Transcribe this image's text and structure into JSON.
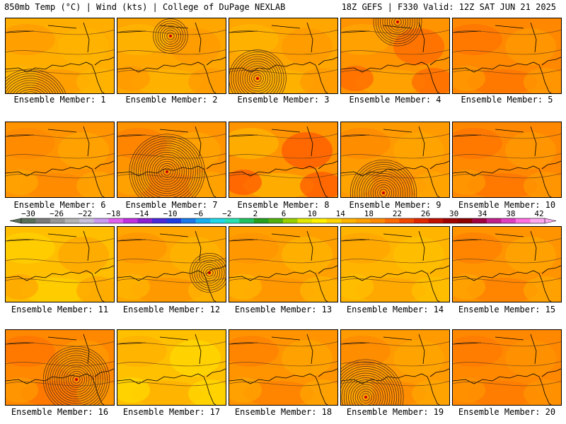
{
  "header": {
    "left": "850mb Temp (°C) | Wind (kts) | College of DuPage NEXLAB",
    "right": "18Z GEFS | F330 Valid: 12Z SAT JUN 21 2025"
  },
  "colorbar": {
    "labels": [
      "−30",
      "−26",
      "−22",
      "−18",
      "−14",
      "−10",
      "−6",
      "−2",
      "2",
      "6",
      "10",
      "14",
      "18",
      "22",
      "26",
      "30",
      "34",
      "38",
      "42"
    ],
    "colors": [
      "#5a6f5a",
      "#7a7a7a",
      "#979797",
      "#b4b4b4",
      "#c8c0dc",
      "#c99bf0",
      "#e060f0",
      "#c030e0",
      "#8a20d0",
      "#4a2ad8",
      "#1f3ee0",
      "#1a78e8",
      "#19b0f0",
      "#20d8e8",
      "#29e0b0",
      "#20c060",
      "#26a020",
      "#50b010",
      "#98d000",
      "#e0e800",
      "#fff000",
      "#ffd400",
      "#ffb400",
      "#ffa000",
      "#ff8a00",
      "#ff6a00",
      "#f04800",
      "#e02800",
      "#c01000",
      "#a00000",
      "#8c0000",
      "#a00040",
      "#c0208a",
      "#e040c0",
      "#ff70e0",
      "#ffa8f0"
    ]
  },
  "members": [
    {
      "label": "Ensemble Member: 1",
      "colors": [
        "#ffae00",
        "#ff9a00",
        "#ffb400"
      ],
      "low": [
        35,
        125,
        16
      ]
    },
    {
      "label": "Ensemble Member: 2",
      "colors": [
        "#ffa600",
        "#ffb400",
        "#ff9a00"
      ],
      "low": [
        75,
        25,
        7
      ]
    },
    {
      "label": "Ensemble Member: 3",
      "colors": [
        "#ffa600",
        "#ffb400",
        "#ff9a00"
      ],
      "low": [
        40,
        85,
        12
      ]
    },
    {
      "label": "Ensemble Member: 4",
      "colors": [
        "#ff9400",
        "#ffa600",
        "#ff6a00"
      ],
      "low": [
        80,
        5,
        10
      ]
    },
    {
      "label": "Ensemble Member: 5",
      "colors": [
        "#ff8800",
        "#ff7400",
        "#ff9a00"
      ],
      "low": null
    },
    {
      "label": "Ensemble Member: 6",
      "colors": [
        "#ff9400",
        "#ff8800",
        "#ffa600"
      ],
      "low": null
    },
    {
      "label": "Ensemble Member: 7",
      "colors": [
        "#ff9400",
        "#ff8000",
        "#ffa600"
      ],
      "low": [
        70,
        70,
        16
      ]
    },
    {
      "label": "Ensemble Member: 8",
      "colors": [
        "#ff9400",
        "#ffb400",
        "#ff5a00"
      ],
      "low": null
    },
    {
      "label": "Ensemble Member: 9",
      "colors": [
        "#ff9a00",
        "#ff8800",
        "#ffa600"
      ],
      "low": [
        60,
        100,
        14
      ]
    },
    {
      "label": "Ensemble Member: 10",
      "colors": [
        "#ff8800",
        "#ff7400",
        "#ff9a00"
      ],
      "low": null
    },
    {
      "label": "Ensemble Member: 11",
      "colors": [
        "#ffbe00",
        "#ffd000",
        "#ffa600"
      ],
      "low": null
    },
    {
      "label": "Ensemble Member: 12",
      "colors": [
        "#ffa600",
        "#ff9400",
        "#ffb400"
      ],
      "low": [
        130,
        65,
        8
      ]
    },
    {
      "label": "Ensemble Member: 13",
      "colors": [
        "#ffa000",
        "#ff9400",
        "#ffb400"
      ],
      "low": null
    },
    {
      "label": "Ensemble Member: 14",
      "colors": [
        "#ffb400",
        "#ffa600",
        "#ffc000"
      ],
      "low": null
    },
    {
      "label": "Ensemble Member: 15",
      "colors": [
        "#ff9400",
        "#ff8000",
        "#ffa600"
      ],
      "low": null
    },
    {
      "label": "Ensemble Member: 16",
      "colors": [
        "#ff8800",
        "#ff7400",
        "#ff9a00"
      ],
      "low": [
        100,
        70,
        14
      ]
    },
    {
      "label": "Ensemble Member: 17",
      "colors": [
        "#ffc000",
        "#ffb000",
        "#ffd800"
      ],
      "low": null
    },
    {
      "label": "Ensemble Member: 18",
      "colors": [
        "#ff9400",
        "#ff8000",
        "#ffa600"
      ],
      "low": null
    },
    {
      "label": "Ensemble Member: 19",
      "colors": [
        "#ff9a00",
        "#ff8800",
        "#ffa600"
      ],
      "low": [
        35,
        95,
        16
      ]
    },
    {
      "label": "Ensemble Member: 20",
      "colors": [
        "#ff8800",
        "#ff7a00",
        "#ff9400"
      ],
      "low": null
    }
  ]
}
